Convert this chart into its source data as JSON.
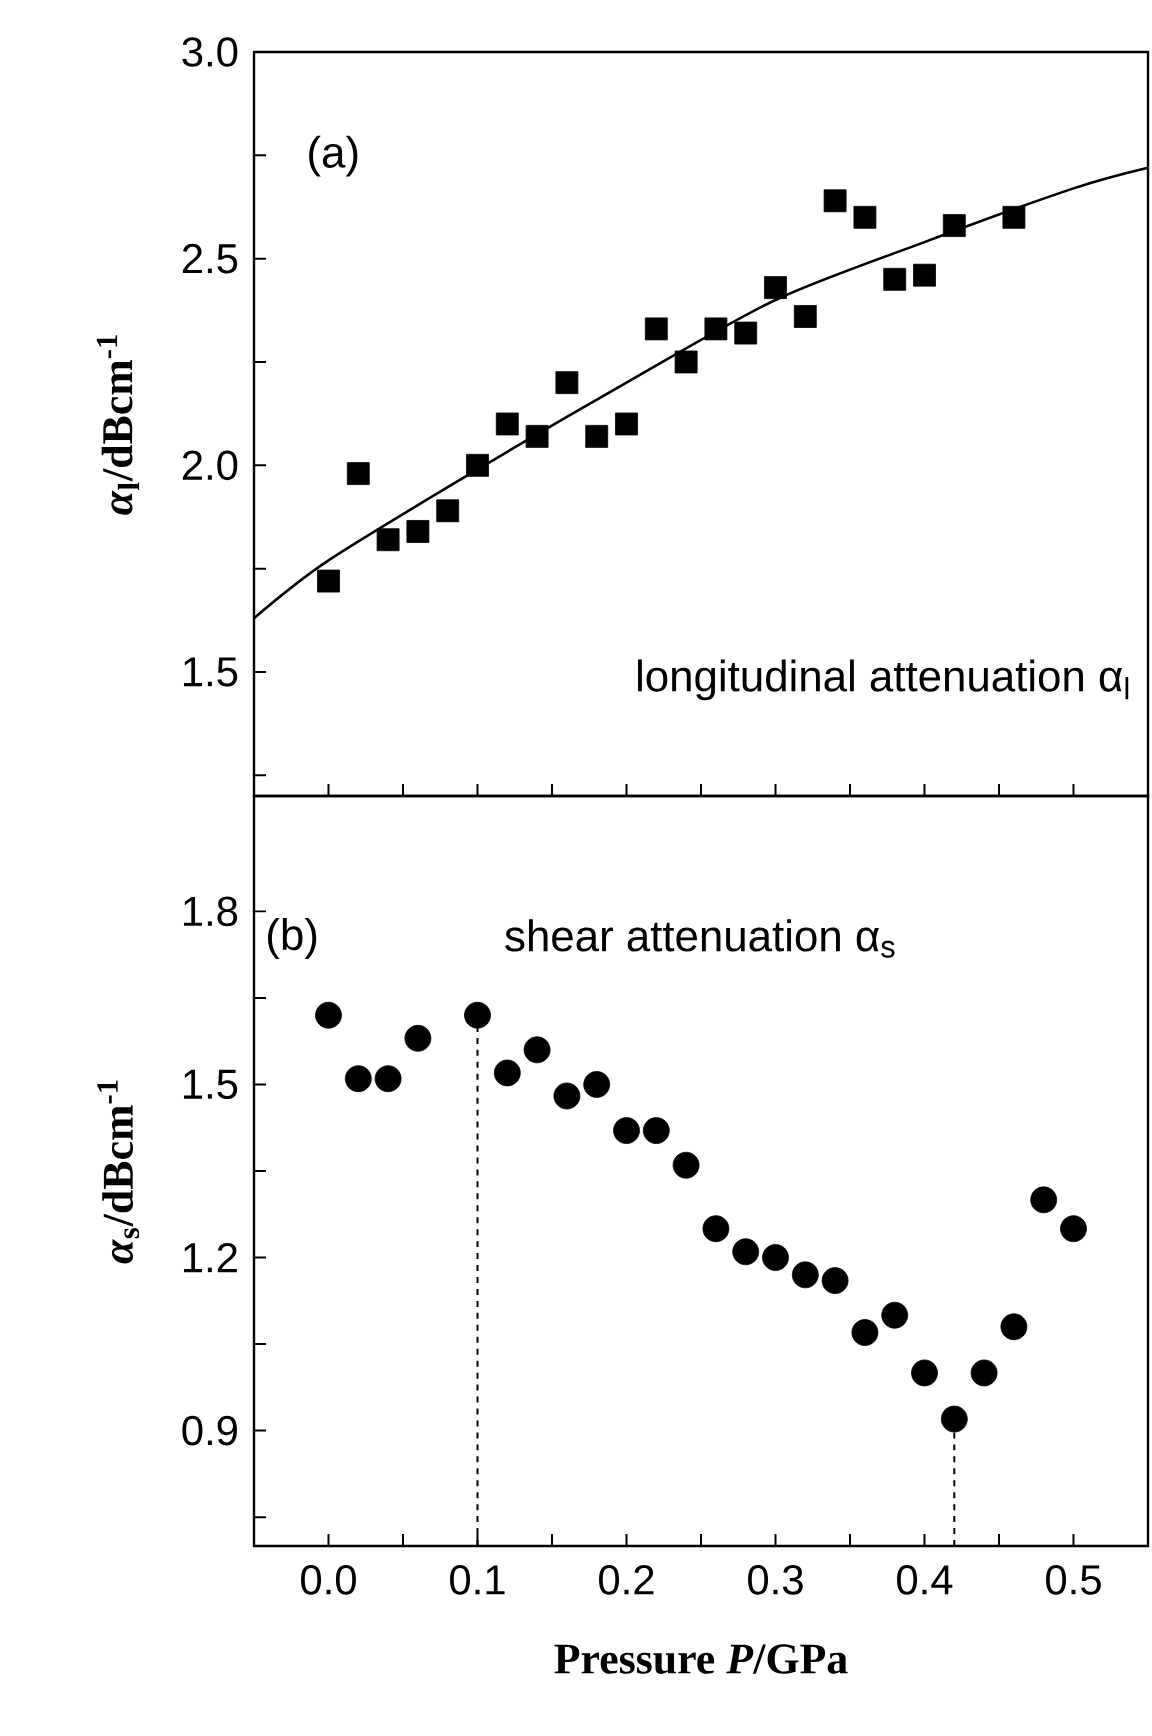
{
  "chart_data": [
    {
      "type": "scatter",
      "ylabel": "*α*$_{l}$/dBcm$^{-1}$",
      "xlim": [
        -0.05,
        0.55
      ],
      "ylim": [
        1.2,
        3.0
      ],
      "tick_labels": "y",
      "marker": "square",
      "xticks": [
        {
          "value": 0.0,
          "label": null
        },
        {
          "value": 0.05,
          "label": null
        },
        {
          "value": 0.1,
          "label": null
        },
        {
          "value": 0.15,
          "label": null
        },
        {
          "value": 0.2,
          "label": null
        },
        {
          "value": 0.25,
          "label": null
        },
        {
          "value": 0.3,
          "label": null
        },
        {
          "value": 0.35,
          "label": null
        },
        {
          "value": 0.4,
          "label": null
        },
        {
          "value": 0.45,
          "label": null
        },
        {
          "value": 0.5,
          "label": null
        }
      ],
      "yticks": [
        {
          "value": 1.25,
          "label": null
        },
        {
          "value": 1.5,
          "label": "1.5"
        },
        {
          "value": 1.75,
          "label": null
        },
        {
          "value": 2.0,
          "label": "2.0"
        },
        {
          "value": 2.25,
          "label": null
        },
        {
          "value": 2.5,
          "label": "2.5"
        },
        {
          "value": 2.75,
          "label": null
        },
        {
          "value": 3.0,
          "label": "3.0"
        }
      ],
      "annotations": [
        "(a)",
        "longitudinal attenuation α$_{l}$"
      ],
      "series": [
        {
          "color": "#000000",
          "x": [
            0.0,
            0.02,
            0.04,
            0.06,
            0.08,
            0.1,
            0.12,
            0.14,
            0.16,
            0.18,
            0.2,
            0.22,
            0.24,
            0.26,
            0.28,
            0.3,
            0.32,
            0.34,
            0.36,
            0.38,
            0.4,
            0.42,
            0.46
          ],
          "values": [
            1.72,
            1.98,
            1.82,
            1.84,
            1.89,
            2.0,
            2.1,
            2.07,
            2.2,
            2.07,
            2.1,
            2.33,
            2.25,
            2.33,
            2.32,
            2.43,
            2.36,
            2.64,
            2.6,
            2.45,
            2.46,
            2.58,
            2.6
          ]
        },
        {
          "type": "line",
          "marker": "none",
          "color": "#000000",
          "x": [
            -0.05,
            0.0,
            0.1,
            0.2,
            0.3,
            0.4,
            0.5,
            0.55
          ],
          "values": [
            1.63,
            1.77,
            1.99,
            2.2,
            2.4,
            2.54,
            2.67,
            2.72
          ]
        }
      ]
    },
    {
      "type": "scatter",
      "xlabel": "Pressure *P*/GPa",
      "ylabel": "*α*$_{s}$/dBcm$^{-1}$",
      "xlim": [
        -0.05,
        0.55
      ],
      "ylim": [
        0.7,
        2.0
      ],
      "marker": "circle",
      "color": "#000000",
      "xticks": [
        {
          "value": 0.0,
          "label": "0.0"
        },
        {
          "value": 0.05,
          "label": null
        },
        {
          "value": 0.1,
          "label": "0.1"
        },
        {
          "value": 0.15,
          "label": null
        },
        {
          "value": 0.2,
          "label": "0.2"
        },
        {
          "value": 0.25,
          "label": null
        },
        {
          "value": 0.3,
          "label": "0.3"
        },
        {
          "value": 0.35,
          "label": null
        },
        {
          "value": 0.4,
          "label": "0.4"
        },
        {
          "value": 0.45,
          "label": null
        },
        {
          "value": 0.5,
          "label": "0.5"
        }
      ],
      "yticks": [
        {
          "value": 0.75,
          "label": null
        },
        {
          "value": 0.9,
          "label": "0.9"
        },
        {
          "value": 1.05,
          "label": null
        },
        {
          "value": 1.2,
          "label": "1.2"
        },
        {
          "value": 1.35,
          "label": null
        },
        {
          "value": 1.5,
          "label": "1.5"
        },
        {
          "value": 1.65,
          "label": null
        },
        {
          "value": 1.8,
          "label": "1.8"
        }
      ],
      "annotations": [
        "(b)",
        "shear attenuation α$_{s}$"
      ],
      "x": [
        0.0,
        0.02,
        0.04,
        0.06,
        0.1,
        0.12,
        0.14,
        0.16,
        0.18,
        0.2,
        0.22,
        0.24,
        0.26,
        0.28,
        0.3,
        0.32,
        0.34,
        0.36,
        0.38,
        0.4,
        0.42,
        0.44,
        0.46,
        0.48,
        0.5
      ],
      "values": [
        1.62,
        1.51,
        1.51,
        1.58,
        1.62,
        1.52,
        1.56,
        1.48,
        1.5,
        1.42,
        1.42,
        1.36,
        1.25,
        1.21,
        1.2,
        1.17,
        1.16,
        1.07,
        1.1,
        1.0,
        0.92,
        1.0,
        1.08,
        1.3,
        1.25
      ],
      "ref_lines": [
        {
          "axis": "x",
          "value": 0.1,
          "line_style": "dashed"
        },
        {
          "axis": "x",
          "value": 0.42,
          "line_style": "dashed"
        }
      ]
    }
  ]
}
